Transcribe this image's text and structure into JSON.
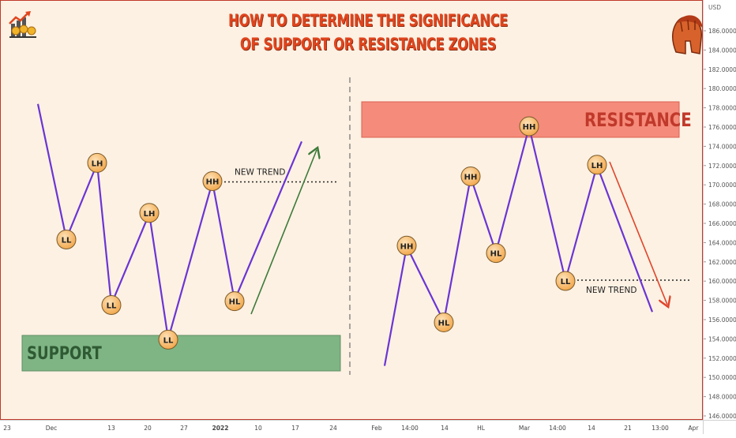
{
  "title": {
    "line1": "HOW TO DETERMINE THE SIGNIFICANCE",
    "line2": "OF SUPPORT OR RESISTANCE ZONES"
  },
  "price_axis": {
    "currency": "USD",
    "ticks": [
      "186.00000",
      "184.00000",
      "182.00000",
      "180.00000",
      "178.00000",
      "176.00000",
      "174.00000",
      "172.00000",
      "170.00000",
      "168.00000",
      "166.00000",
      "164.00000",
      "162.00000",
      "160.00000",
      "158.00000",
      "156.00000",
      "154.00000",
      "152.00000",
      "150.00000",
      "148.00000",
      "146.00000"
    ]
  },
  "time_axis": {
    "ticks": [
      "23",
      "Dec",
      "13",
      "20",
      "27",
      "2022",
      "10",
      "17",
      "24",
      "Feb",
      "14:00",
      "14",
      "HL",
      "Mar",
      "14:00",
      "14",
      "21",
      "13:00",
      "Apr"
    ]
  },
  "icons": {
    "left_logo": "growth-chart-coins-icon",
    "right_logo": "spartan-helmet-icon"
  },
  "colors": {
    "line": "#6a35d4",
    "pivot_fill": "#f8c47c",
    "support_zone": "#7fb585",
    "resistance_zone": "#f58b7b",
    "up_arrow": "#3d7a3a",
    "down_arrow": "#e0442a",
    "title": "#e0451e"
  },
  "chart_data": [
    {
      "type": "line",
      "panel": "left",
      "zone": {
        "label": "SUPPORT",
        "kind": "support"
      },
      "points": [
        {
          "t": 0,
          "price": 178.4,
          "label": ""
        },
        {
          "t": 1,
          "price": 164.4,
          "label": "LL"
        },
        {
          "t": 2,
          "price": 172.2,
          "label": "LH"
        },
        {
          "t": 3,
          "price": 157.6,
          "label": "LL"
        },
        {
          "t": 4,
          "price": 167.0,
          "label": "LH"
        },
        {
          "t": 5,
          "price": 154.0,
          "label": "LL"
        },
        {
          "t": 6,
          "price": 170.3,
          "label": "HH"
        },
        {
          "t": 7,
          "price": 158.0,
          "label": "HL"
        },
        {
          "t": 8,
          "price": 174.5,
          "label": ""
        }
      ],
      "annotation": {
        "label": "NEW TREND",
        "level": 170.3
      },
      "arrow": "up"
    },
    {
      "type": "line",
      "panel": "right",
      "zone": {
        "label": "RESISTANCE",
        "kind": "resistance"
      },
      "points": [
        {
          "t": 0,
          "price": 151.2,
          "label": ""
        },
        {
          "t": 1,
          "price": 163.6,
          "label": "HH"
        },
        {
          "t": 2,
          "price": 155.8,
          "label": "HL"
        },
        {
          "t": 3,
          "price": 170.8,
          "label": "HH"
        },
        {
          "t": 4,
          "price": 163.0,
          "label": "HL"
        },
        {
          "t": 5,
          "price": 176.0,
          "label": "HH"
        },
        {
          "t": 6,
          "price": 160.1,
          "label": "LL"
        },
        {
          "t": 7,
          "price": 172.0,
          "label": "LH"
        },
        {
          "t": 8,
          "price": 156.8,
          "label": ""
        }
      ],
      "annotation": {
        "label": "NEW TREND",
        "level": 160.1
      },
      "arrow": "down"
    }
  ]
}
